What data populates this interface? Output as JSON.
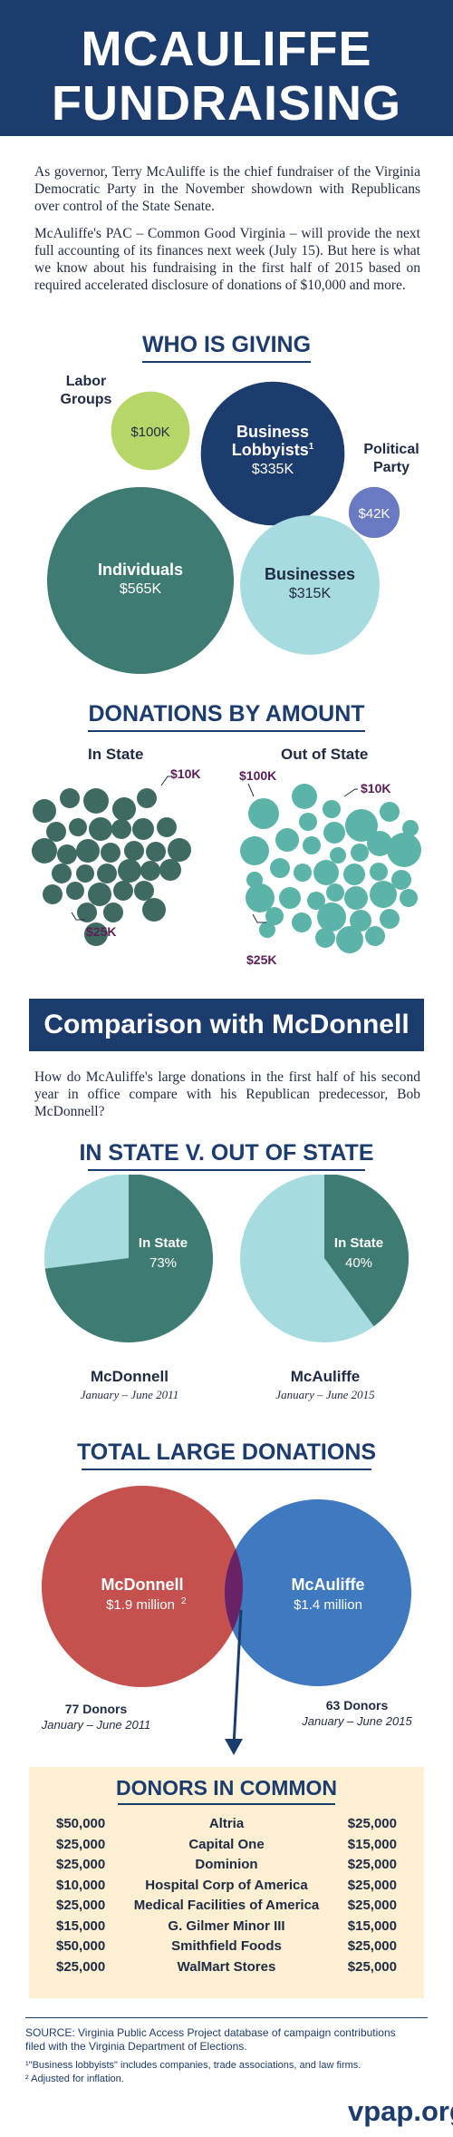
{
  "header": {
    "line1": "MCAULIFFE",
    "line2": "FUNDRAISING"
  },
  "intro": {
    "p1": "As governor, Terry McAuliffe is the chief fundraiser of the Virginia Democratic Party in the November showdown with Republicans over control of the State Senate.",
    "p2": "McAuliffe's PAC – Common Good Virginia – will provide the next full accounting of its finances next week (July 15). But here is what we know about his fundraising in the first half of 2015 based on required accelerated disclosure of donations of $10,000 and more."
  },
  "colors": {
    "navy": "#1d3c6e",
    "teal": "#3e7b72",
    "light_teal": "#a6dbe0",
    "green": "#b6d667",
    "purple": "#6a7ac2",
    "red": "#c5514e",
    "blue": "#3f79c0",
    "overlap": "#6a2266",
    "cream": "#fcefd2",
    "bubble_teal": "#5cb4a8",
    "dark_bubble": "#3e6a62",
    "plum": "#5b1f57"
  },
  "who_is_giving": {
    "title": "WHO IS GIVING",
    "chart_data": {
      "type": "bubble",
      "items": [
        {
          "label": "Labor Groups",
          "value": 100,
          "value_label": "$100K"
        },
        {
          "label": "Business Lobbyists",
          "sup": "1",
          "value": 335,
          "value_label": "$335K"
        },
        {
          "label": "Political Party",
          "value": 42,
          "value_label": "$42K"
        },
        {
          "label": "Individuals",
          "value": 565,
          "value_label": "$565K"
        },
        {
          "label": "Businesses",
          "value": 315,
          "value_label": "$315K"
        }
      ]
    }
  },
  "by_amount": {
    "title": "DONATIONS BY AMOUNT",
    "in_state": {
      "label": "In State",
      "top": "$10K",
      "bottom": "$25K"
    },
    "out_state": {
      "label": "Out of State",
      "left": "$100K",
      "right": "$10K",
      "bottom": "$25K"
    }
  },
  "comparison": {
    "banner": "Comparison with McDonnell",
    "text": "How do McAuliffe's large donations in the first half of his second year in office compare with his Republican predecessor, Bob McDonnell?"
  },
  "in_v_out": {
    "title": "IN STATE V. OUT OF STATE",
    "chart_data": {
      "type": "pie",
      "pies": [
        {
          "name": "McDonnell",
          "period": "January – June 2011",
          "slice_label": "In State",
          "in_state": 73,
          "value_label": "73%"
        },
        {
          "name": "McAuliffe",
          "period": "January – June 2015",
          "slice_label": "In State",
          "in_state": 40,
          "value_label": "40%"
        }
      ]
    }
  },
  "total_large": {
    "title": "TOTAL LARGE DONATIONS",
    "left": {
      "name": "McDonnell",
      "amount": "$1.9 million",
      "sup": "2",
      "donors": "77 Donors",
      "period": "January – June 2011"
    },
    "right": {
      "name": "McAuliffe",
      "amount": "$1.4 million",
      "donors": "63 Donors",
      "period": "January – June 2015"
    }
  },
  "donors_in_common": {
    "title": "DONORS IN COMMON",
    "rows": [
      {
        "left": "$50,000",
        "name": "Altria",
        "right": "$25,000"
      },
      {
        "left": "$25,000",
        "name": "Capital One",
        "right": "$15,000"
      },
      {
        "left": "$25,000",
        "name": "Dominion",
        "right": "$25,000"
      },
      {
        "left": "$10,000",
        "name": "Hospital Corp of America",
        "right": "$25,000"
      },
      {
        "left": "$25,000",
        "name": "Medical Facilities of America",
        "right": "$25,000"
      },
      {
        "left": "$15,000",
        "name": "G. Gilmer Minor III",
        "right": "$15,000"
      },
      {
        "left": "$50,000",
        "name": "Smithfield Foods",
        "right": "$25,000"
      },
      {
        "left": "$25,000",
        "name": "WalMart Stores",
        "right": "$25,000"
      }
    ]
  },
  "footer": {
    "source": "SOURCE: Virginia Public Access Project database of campaign contributions filed with the Virginia Department of Elections.",
    "note1": "¹\"Business lobbyists\" includes companies, trade associations, and law firms.",
    "note2": "² Adjusted for inflation.",
    "logo": "vpap.org"
  }
}
